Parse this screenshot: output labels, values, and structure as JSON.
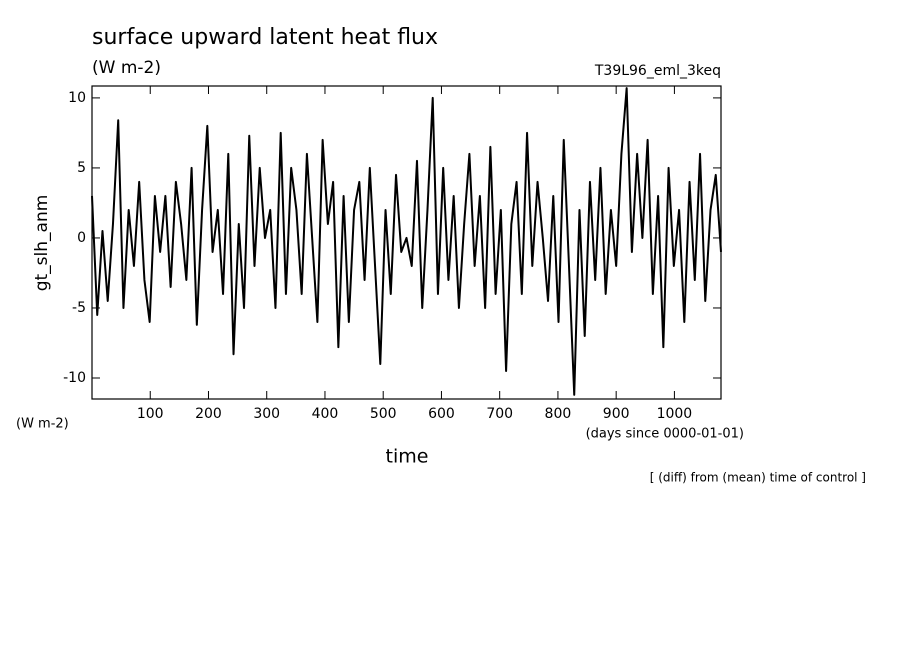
{
  "chart_data": {
    "type": "line",
    "title": "surface upward latent heat flux",
    "units": "(W m-2)",
    "run_label": "T39L96_eml_3keq",
    "y_label": "gt_slh_anm",
    "y_units": "(W m-2)",
    "x_label": "time",
    "x_units": "(days since 0000-01-01)",
    "note": "[ (diff) from (mean) time of control ]",
    "color": "#000000",
    "xlim": [
      0,
      1080
    ],
    "ylim": [
      -11.5,
      10.85
    ],
    "xticks": [
      100,
      200,
      300,
      400,
      500,
      600,
      700,
      800,
      900,
      1000
    ],
    "yticks": [
      -10,
      -5,
      0,
      5,
      10
    ],
    "x": [
      0,
      9,
      18,
      27,
      36,
      45,
      54,
      63,
      72,
      81,
      90,
      99,
      108,
      117,
      126,
      135,
      144,
      153,
      162,
      171,
      180,
      189,
      198,
      207,
      216,
      225,
      234,
      243,
      252,
      261,
      270,
      279,
      288,
      297,
      306,
      315,
      324,
      333,
      342,
      351,
      360,
      369,
      378,
      387,
      396,
      405,
      414,
      423,
      432,
      441,
      450,
      459,
      468,
      477,
      486,
      495,
      504,
      513,
      522,
      531,
      540,
      549,
      558,
      567,
      576,
      585,
      594,
      603,
      612,
      621,
      630,
      639,
      648,
      657,
      666,
      675,
      684,
      693,
      702,
      711,
      720,
      729,
      738,
      747,
      756,
      765,
      774,
      783,
      792,
      801,
      810,
      819,
      828,
      837,
      846,
      855,
      864,
      873,
      882,
      891,
      900,
      909,
      918,
      927,
      936,
      945,
      954,
      963,
      972,
      981,
      990,
      999,
      1008,
      1017,
      1026,
      1035,
      1044,
      1053,
      1062,
      1071,
      1080
    ],
    "values": [
      3,
      -5.5,
      0.5,
      -4.5,
      1,
      8.4,
      -5,
      2,
      -2,
      4,
      -3,
      -6,
      3,
      -1,
      3,
      -3.5,
      4,
      1,
      -3,
      5,
      -6.2,
      2,
      8,
      -1,
      2,
      -4,
      6,
      -8.3,
      1,
      -5,
      7.3,
      -2,
      5,
      0,
      2,
      -5,
      7.5,
      -4,
      5,
      2,
      -4,
      6,
      0,
      -6,
      7,
      1,
      4,
      -7.8,
      3,
      -6,
      2,
      4,
      -3,
      5,
      -2,
      -9,
      2,
      -4,
      4.5,
      -1,
      0,
      -2,
      5.5,
      -5,
      2,
      10,
      -4,
      5,
      -3,
      3,
      -5,
      1,
      6,
      -2,
      3,
      -5,
      6.5,
      -4,
      2,
      -9.5,
      1,
      4,
      -4,
      7.5,
      -2,
      4,
      0,
      -4.5,
      3,
      -6,
      7,
      -2,
      -11.2,
      2,
      -7,
      4,
      -3,
      5,
      -4,
      2,
      -2,
      6,
      10.7,
      -1,
      6,
      0,
      7,
      -4,
      3,
      -7.8,
      5,
      -2,
      2,
      -6,
      4,
      -3,
      6,
      -4.5,
      2,
      4.5,
      -1
    ]
  }
}
